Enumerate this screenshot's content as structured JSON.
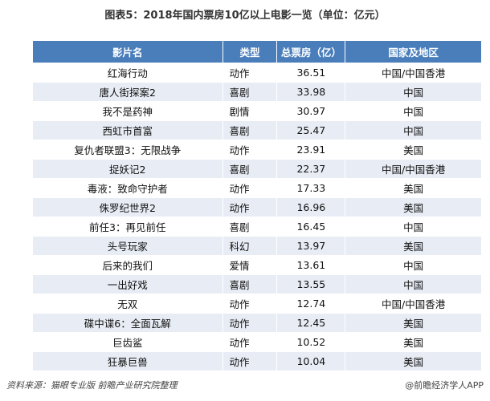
{
  "header": {
    "title": "图表5：2018年国内票房10亿以上电影一览（单位：亿元）"
  },
  "table": {
    "columns": [
      "影片名",
      "类型",
      "总票房（亿）",
      "国家及地区"
    ],
    "rows": [
      [
        "红海行动",
        "动作",
        "36.51",
        "中国/中国香港"
      ],
      [
        "唐人街探案2",
        "喜剧",
        "33.98",
        "中国"
      ],
      [
        "我不是药神",
        "剧情",
        "30.97",
        "中国"
      ],
      [
        "西虹市首富",
        "喜剧",
        "25.47",
        "中国"
      ],
      [
        "复仇者联盟3：无限战争",
        "动作",
        "23.91",
        "美国"
      ],
      [
        "捉妖记2",
        "喜剧",
        "22.37",
        "中国/中国香港"
      ],
      [
        "毒液：致命守护者",
        "动作",
        "17.33",
        "美国"
      ],
      [
        "侏罗纪世界2",
        "动作",
        "16.96",
        "美国"
      ],
      [
        "前任3：再见前任",
        "喜剧",
        "16.45",
        "中国"
      ],
      [
        "头号玩家",
        "科幻",
        "13.97",
        "美国"
      ],
      [
        "后来的我们",
        "爱情",
        "13.61",
        "中国"
      ],
      [
        "一出好戏",
        "喜剧",
        "13.55",
        "中国"
      ],
      [
        "无双",
        "动作",
        "12.74",
        "中国/中国香港"
      ],
      [
        "碟中谍6：全面瓦解",
        "动作",
        "12.45",
        "美国"
      ],
      [
        "巨齿鲨",
        "动作",
        "10.52",
        "美国"
      ],
      [
        "狂暴巨兽",
        "动作",
        "10.04",
        "美国"
      ]
    ]
  },
  "footer": {
    "source": "资料来源：猫眼专业版  前瞻产业研究院整理",
    "credit": "@前瞻经济学人APP"
  }
}
